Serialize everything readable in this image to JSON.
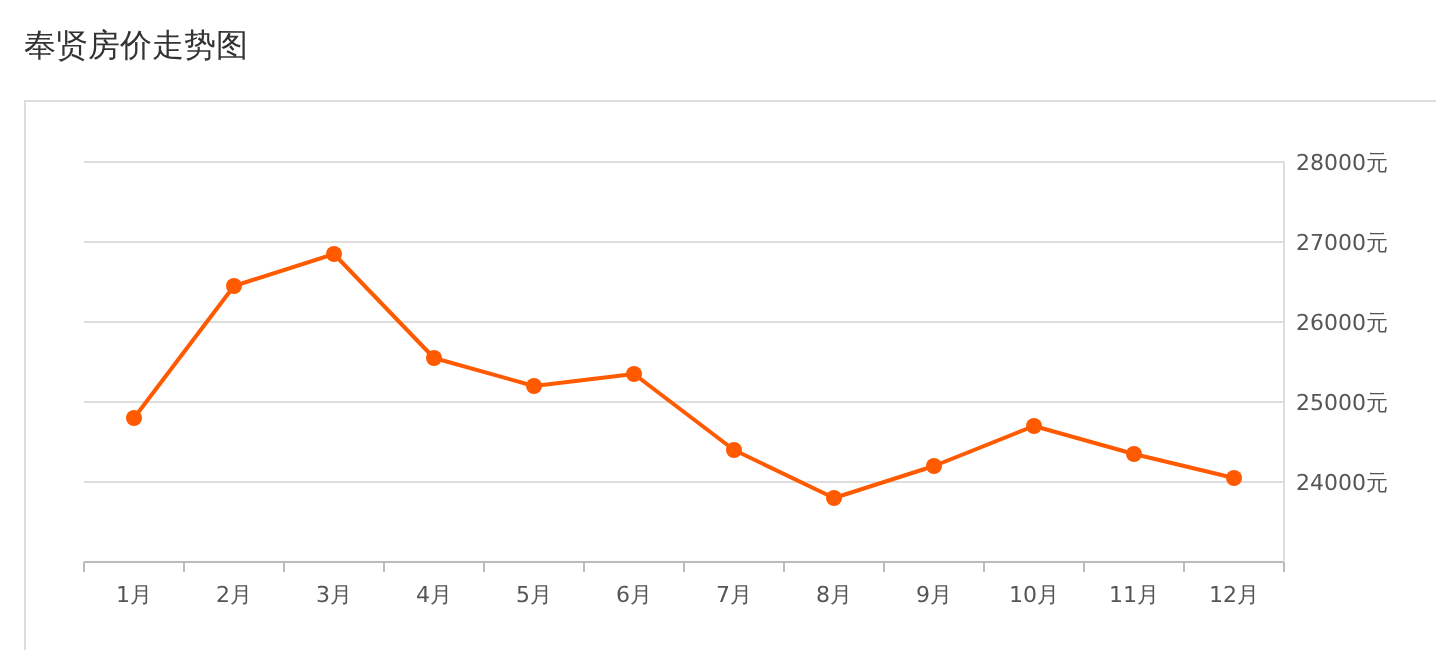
{
  "chart_data": {
    "type": "line",
    "title": "奉贤房价走势图",
    "categories": [
      "1月",
      "2月",
      "3月",
      "4月",
      "5月",
      "6月",
      "7月",
      "8月",
      "9月",
      "10月",
      "11月",
      "12月"
    ],
    "series": [
      {
        "color": "#ff5a00",
        "values": [
          24800,
          26450,
          26850,
          25550,
          25200,
          25350,
          24400,
          23800,
          24200,
          24700,
          24350,
          24050
        ]
      }
    ],
    "ylim": [
      23000,
      28000
    ],
    "yticks": [
      {
        "value": 24000,
        "label": "24000元"
      },
      {
        "value": 25000,
        "label": "25000元"
      },
      {
        "value": 26000,
        "label": "26000元"
      },
      {
        "value": 27000,
        "label": "27000元"
      },
      {
        "value": 28000,
        "label": "28000元"
      }
    ],
    "grid": "y",
    "marker": "circle",
    "line_style": "solid"
  }
}
